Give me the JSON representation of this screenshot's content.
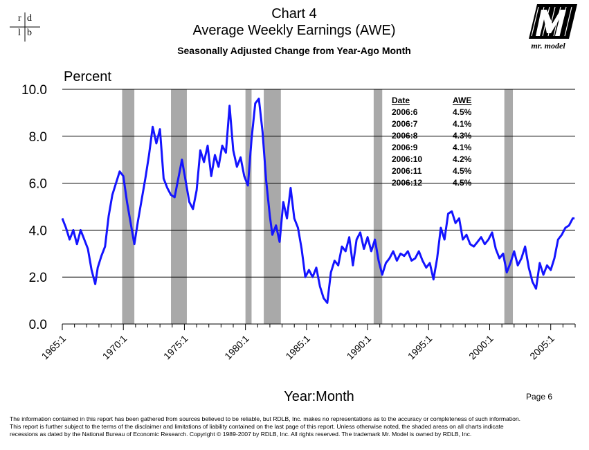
{
  "header": {
    "logo_left": {
      "r": "r",
      "d": "d",
      "l": "l",
      "b": "b"
    },
    "title_line1": "Chart 4",
    "title_line2": "Average Weekly Earnings (AWE)",
    "subtitle": "Seasonally Adjusted Change from Year-Ago Month",
    "logo_right_text": "mr. model"
  },
  "page_number": "Page 6",
  "footer_text": [
    "The information contained in this report has been gathered from sources believed to be reliable, but RDLB, Inc. makes no representations as to the accuracy or completeness of such information.",
    "This report is further subject to the terms of the disclaimer and limitations of liability contained on the last page of this report.  Unless otherwise noted, the shaded areas on all charts indicate",
    "recessions as dated by the National Bureau of Economic Research. Copyright © 1989-2007 by RDLB, Inc.  All rights reserved.  The trademark Mr. Model is owned by RDLB, Inc."
  ],
  "colors": {
    "series": "#1414ff",
    "recession": "#a0a0a0",
    "grid": "#000000"
  },
  "chart_data": {
    "type": "line",
    "title": "Average Weekly Earnings (AWE)",
    "subtitle": "Seasonally Adjusted Change from Year-Ago Month",
    "ylabel": "Percent",
    "xlabel": "Year:Month",
    "ylim": [
      0,
      10
    ],
    "xlim": [
      1965.0,
      2007.0
    ],
    "yticks": [
      "0.0",
      "2.0",
      "4.0",
      "6.0",
      "8.0",
      "10.0"
    ],
    "xticks": [
      "1965:1",
      "1970:1",
      "1975:1",
      "1980:1",
      "1985:1",
      "1990:1",
      "1995:1",
      "2000:1",
      "2005:1"
    ],
    "grid": "horizontal",
    "recessions": [
      [
        1969.9,
        1970.9
      ],
      [
        1973.9,
        1975.2
      ],
      [
        1980.0,
        1980.5
      ],
      [
        1981.5,
        1982.9
      ],
      [
        1990.5,
        1991.2
      ],
      [
        2001.2,
        2001.9
      ]
    ],
    "table": {
      "headers": [
        "Date",
        "AWE"
      ],
      "rows": [
        [
          "2006:6",
          "4.5%"
        ],
        [
          "2006:7",
          "4.1%"
        ],
        [
          "2006:8",
          "4.3%"
        ],
        [
          "2006:9",
          "4.1%"
        ],
        [
          "2006:10",
          "4.2%"
        ],
        [
          "2006:11",
          "4.5%"
        ],
        [
          "2006:12",
          "4.5%"
        ]
      ]
    },
    "series": [
      {
        "x": [
          1965.0,
          1965.3,
          1965.6,
          1965.9,
          1966.2,
          1966.5,
          1966.8,
          1967.1,
          1967.4,
          1967.7,
          1967.9,
          1968.2,
          1968.5,
          1968.8,
          1969.1,
          1969.4,
          1969.7,
          1970.0,
          1970.3,
          1970.6,
          1970.9,
          1971.2,
          1971.5,
          1971.8,
          1972.1,
          1972.4,
          1972.7,
          1973.0,
          1973.3,
          1973.6,
          1973.9,
          1974.2,
          1974.5,
          1974.8,
          1975.1,
          1975.4,
          1975.7,
          1976.0,
          1976.3,
          1976.6,
          1976.9,
          1977.2,
          1977.5,
          1977.8,
          1978.1,
          1978.4,
          1978.7,
          1979.0,
          1979.3,
          1979.6,
          1979.9,
          1980.2,
          1980.5,
          1980.8,
          1981.1,
          1981.4,
          1981.7,
          1982.0,
          1982.2,
          1982.5,
          1982.8,
          1983.1,
          1983.4,
          1983.7,
          1984.0,
          1984.3,
          1984.6,
          1984.9,
          1985.2,
          1985.5,
          1985.8,
          1986.1,
          1986.4,
          1986.7,
          1987.0,
          1987.3,
          1987.6,
          1987.9,
          1988.2,
          1988.5,
          1988.8,
          1989.1,
          1989.4,
          1989.7,
          1990.0,
          1990.3,
          1990.6,
          1990.9,
          1991.2,
          1991.5,
          1991.8,
          1992.1,
          1992.4,
          1992.7,
          1993.0,
          1993.3,
          1993.6,
          1993.9,
          1994.2,
          1994.5,
          1994.8,
          1995.1,
          1995.4,
          1995.7,
          1996.0,
          1996.3,
          1996.6,
          1996.9,
          1997.2,
          1997.5,
          1997.8,
          1998.1,
          1998.4,
          1998.7,
          1999.0,
          1999.3,
          1999.6,
          1999.9,
          2000.2,
          2000.5,
          2000.8,
          2001.1,
          2001.4,
          2001.7,
          2002.0,
          2002.3,
          2002.6,
          2002.9,
          2003.2,
          2003.5,
          2003.8,
          2004.1,
          2004.4,
          2004.7,
          2005.0,
          2005.3,
          2005.6,
          2005.9,
          2006.2,
          2006.5,
          2006.8,
          2006.95
        ],
        "y": [
          4.5,
          4.1,
          3.6,
          4.0,
          3.4,
          4.0,
          3.6,
          3.2,
          2.3,
          1.7,
          2.4,
          2.9,
          3.3,
          4.6,
          5.5,
          6.0,
          6.5,
          6.3,
          5.2,
          4.3,
          3.4,
          4.4,
          5.3,
          6.2,
          7.2,
          8.4,
          7.7,
          8.3,
          6.2,
          5.8,
          5.5,
          5.4,
          6.2,
          7.0,
          6.1,
          5.2,
          4.9,
          5.7,
          7.4,
          6.9,
          7.6,
          6.3,
          7.2,
          6.7,
          7.6,
          7.3,
          9.3,
          7.4,
          6.7,
          7.1,
          6.3,
          5.9,
          7.9,
          9.4,
          9.6,
          8.2,
          6.1,
          4.6,
          3.8,
          4.2,
          3.5,
          5.2,
          4.5,
          5.8,
          4.5,
          4.1,
          3.2,
          2.0,
          2.3,
          2.0,
          2.4,
          1.6,
          1.1,
          0.9,
          2.2,
          2.7,
          2.5,
          3.3,
          3.1,
          3.7,
          2.5,
          3.6,
          3.9,
          3.2,
          3.7,
          3.1,
          3.6,
          2.7,
          2.1,
          2.6,
          2.8,
          3.1,
          2.7,
          3.0,
          2.9,
          3.1,
          2.7,
          2.8,
          3.1,
          2.7,
          2.4,
          2.6,
          1.9,
          2.8,
          4.1,
          3.6,
          4.7,
          4.8,
          4.3,
          4.5,
          3.6,
          3.8,
          3.4,
          3.3,
          3.5,
          3.7,
          3.4,
          3.6,
          3.9,
          3.2,
          2.8,
          3.0,
          2.2,
          2.6,
          3.1,
          2.5,
          2.8,
          3.3,
          2.4,
          1.8,
          1.5,
          2.6,
          2.1,
          2.5,
          2.3,
          2.8,
          3.6,
          3.8,
          4.1,
          4.2,
          4.5,
          4.5
        ]
      }
    ]
  }
}
